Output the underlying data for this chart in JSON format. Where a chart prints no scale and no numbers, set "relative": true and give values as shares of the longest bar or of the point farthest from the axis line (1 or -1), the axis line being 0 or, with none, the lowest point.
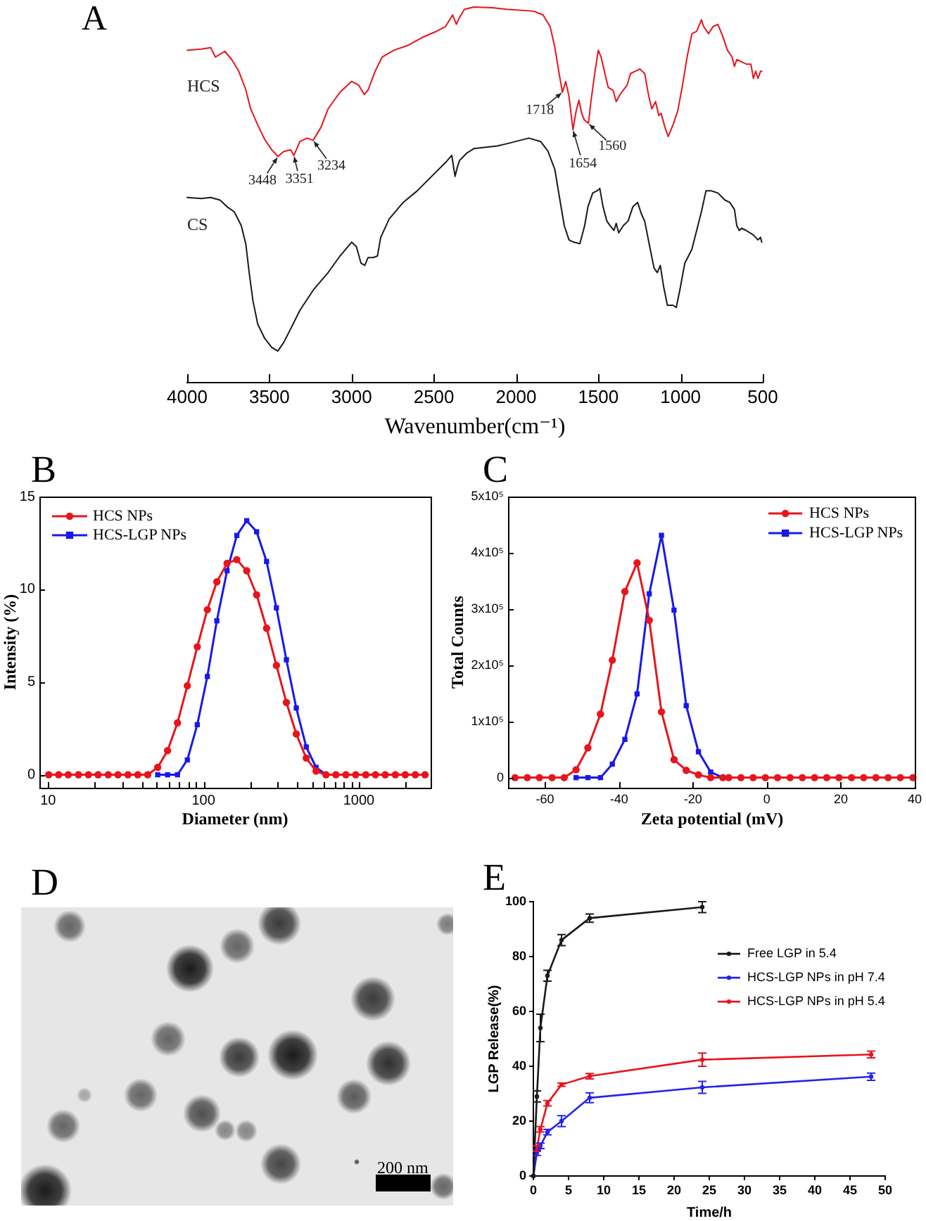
{
  "chart_data": [
    {
      "type": "line",
      "title": "A",
      "xlabel": "Wavenumber(cm⁻¹)",
      "relative": true,
      "xlim": [
        4000,
        500
      ],
      "xticks": [
        4000,
        3500,
        3000,
        2500,
        2000,
        1500,
        1000,
        500
      ],
      "marker": "none",
      "series": [
        {
          "name": "HCS",
          "color": "#e8141c",
          "x": [
            4000,
            3914,
            3857,
            3829,
            3771,
            3729,
            3686,
            3643,
            3614,
            3571,
            3529,
            3486,
            3448,
            3414,
            3371,
            3351,
            3314,
            3271,
            3234,
            3186,
            3143,
            3071,
            3000,
            2957,
            2923,
            2900,
            2857,
            2814,
            2743,
            2657,
            2571,
            2486,
            2429,
            2386,
            2363,
            2343,
            2314,
            2257,
            2143,
            2057,
            1894,
            1836,
            1793,
            1764,
            1736,
            1718,
            1698,
            1678,
            1654,
            1635,
            1618,
            1601,
            1586,
            1560,
            1545,
            1520,
            1500,
            1483,
            1463,
            1440,
            1411,
            1391,
            1368,
            1348,
            1325,
            1304,
            1276,
            1247,
            1218,
            1195,
            1175,
            1152,
            1132,
            1118,
            1095,
            1075,
            1046,
            1017,
            988,
            960,
            931,
            902,
            873,
            859,
            830,
            802,
            773,
            744,
            715,
            687,
            672,
            658,
            629,
            600,
            572,
            557,
            543,
            529,
            514,
            505
          ],
          "values": [
            0.885,
            0.888,
            0.892,
            0.867,
            0.882,
            0.86,
            0.829,
            0.779,
            0.729,
            0.686,
            0.648,
            0.62,
            0.602,
            0.615,
            0.62,
            0.605,
            0.642,
            0.651,
            0.645,
            0.68,
            0.729,
            0.773,
            0.802,
            0.792,
            0.767,
            0.779,
            0.829,
            0.867,
            0.885,
            0.898,
            0.919,
            0.935,
            0.948,
            0.979,
            0.954,
            0.973,
            0.994,
            1.0,
            0.998,
            0.994,
            0.989,
            0.979,
            0.948,
            0.892,
            0.817,
            0.773,
            0.802,
            0.761,
            0.673,
            0.723,
            0.752,
            0.717,
            0.7,
            0.69,
            0.748,
            0.829,
            0.885,
            0.867,
            0.829,
            0.786,
            0.779,
            0.748,
            0.767,
            0.779,
            0.792,
            0.823,
            0.829,
            0.835,
            0.823,
            0.767,
            0.729,
            0.748,
            0.711,
            0.717,
            0.68,
            0.655,
            0.686,
            0.723,
            0.792,
            0.867,
            0.929,
            0.935,
            0.966,
            0.948,
            0.929,
            0.948,
            0.954,
            0.923,
            0.885,
            0.867,
            0.842,
            0.86,
            0.854,
            0.848,
            0.848,
            0.81,
            0.829,
            0.81,
            0.829,
            0.829
          ]
        },
        {
          "name": "CS",
          "color": "#1a1a1a",
          "x": [
            4000,
            3914,
            3857,
            3800,
            3757,
            3714,
            3671,
            3643,
            3623,
            3600,
            3571,
            3529,
            3486,
            3449,
            3414,
            3371,
            3314,
            3229,
            3143,
            3071,
            3000,
            2971,
            2943,
            2920,
            2900,
            2871,
            2843,
            2823,
            2771,
            2686,
            2600,
            2514,
            2429,
            2391,
            2371,
            2357,
            2343,
            2300,
            2257,
            2114,
            2057,
            1922,
            1851,
            1807,
            1764,
            1736,
            1707,
            1678,
            1649,
            1612,
            1583,
            1563,
            1534,
            1506,
            1491,
            1471,
            1448,
            1428,
            1405,
            1391,
            1376,
            1348,
            1319,
            1290,
            1261,
            1238,
            1218,
            1190,
            1161,
            1141,
            1123,
            1103,
            1080,
            1046,
            1026,
            1003,
            974,
            931,
            902,
            873,
            845,
            816,
            773,
            730,
            701,
            672,
            658,
            643,
            629,
            600,
            557,
            529,
            514,
            506
          ],
          "values": [
            0.493,
            0.49,
            0.493,
            0.486,
            0.468,
            0.455,
            0.418,
            0.368,
            0.293,
            0.218,
            0.156,
            0.118,
            0.094,
            0.084,
            0.106,
            0.143,
            0.193,
            0.249,
            0.293,
            0.337,
            0.374,
            0.362,
            0.318,
            0.312,
            0.333,
            0.333,
            0.337,
            0.387,
            0.436,
            0.48,
            0.511,
            0.549,
            0.586,
            0.605,
            0.549,
            0.574,
            0.592,
            0.611,
            0.623,
            0.63,
            0.636,
            0.651,
            0.642,
            0.617,
            0.567,
            0.493,
            0.418,
            0.38,
            0.374,
            0.37,
            0.418,
            0.468,
            0.505,
            0.511,
            0.517,
            0.468,
            0.43,
            0.418,
            0.405,
            0.424,
            0.399,
            0.418,
            0.43,
            0.468,
            0.48,
            0.449,
            0.43,
            0.368,
            0.305,
            0.293,
            0.312,
            0.256,
            0.206,
            0.206,
            0.2,
            0.249,
            0.318,
            0.355,
            0.405,
            0.455,
            0.511,
            0.511,
            0.505,
            0.486,
            0.48,
            0.461,
            0.418,
            0.405,
            0.411,
            0.405,
            0.393,
            0.38,
            0.387,
            0.374
          ]
        }
      ],
      "annotations": [
        {
          "text": "3448",
          "x": 3448,
          "y": 0.602
        },
        {
          "text": "3351",
          "x": 3351,
          "y": 0.605
        },
        {
          "text": "3234",
          "x": 3234,
          "y": 0.645
        },
        {
          "text": "1718",
          "x": 1718,
          "y": 0.773
        },
        {
          "text": "1654",
          "x": 1654,
          "y": 0.673
        },
        {
          "text": "1560",
          "x": 1560,
          "y": 0.69
        }
      ]
    },
    {
      "type": "line",
      "title": "B",
      "xlabel": "Diameter (nm)",
      "ylabel": "Intensity (%)",
      "log": "x",
      "legend": "top left",
      "x": [
        10.1,
        11.7,
        13.5,
        15.7,
        18.2,
        21.0,
        24.4,
        28.2,
        32.7,
        37.8,
        43.8,
        50.8,
        58.8,
        68.1,
        78.8,
        91.3,
        106,
        122,
        142,
        164,
        190,
        220,
        255,
        295,
        342,
        396,
        459,
        531,
        615,
        712,
        825,
        955,
        1110,
        1280,
        1480,
        1720,
        1990,
        2310,
        2670
      ],
      "xlim": [
        8.8,
        2900
      ],
      "xticks": [
        10,
        {
          "value": 20,
          "label": null
        },
        {
          "value": 30,
          "label": null
        },
        {
          "value": 40,
          "label": null
        },
        {
          "value": 50,
          "label": null
        },
        {
          "value": 60,
          "label": null
        },
        {
          "value": 70,
          "label": null
        },
        {
          "value": 80,
          "label": null
        },
        {
          "value": 90,
          "label": null
        },
        100,
        {
          "value": 200,
          "label": null
        },
        {
          "value": 300,
          "label": null
        },
        {
          "value": 400,
          "label": null
        },
        {
          "value": 500,
          "label": null
        },
        {
          "value": 600,
          "label": null
        },
        {
          "value": 700,
          "label": null
        },
        {
          "value": 800,
          "label": null
        },
        {
          "value": 900,
          "label": null
        },
        1000,
        {
          "value": 2000,
          "label": null
        }
      ],
      "ylim": [
        -0.7,
        15
      ],
      "yticks": [
        0,
        5,
        10,
        15
      ],
      "series": [
        {
          "name": "HCS NPs",
          "color": "#e8141c",
          "marker": "circle",
          "values": [
            0,
            0,
            0,
            0,
            0,
            0,
            0,
            0,
            0,
            0,
            0,
            0.4,
            1.3,
            2.8,
            4.8,
            6.9,
            8.9,
            10.4,
            11.4,
            11.6,
            11.0,
            9.7,
            7.9,
            5.9,
            3.9,
            2.2,
            0.9,
            0.2,
            0,
            0,
            0,
            0,
            0,
            0,
            0,
            0,
            0,
            0,
            0
          ]
        },
        {
          "name": "HCS-LGP NPs",
          "color": "#1818ee",
          "marker": "square",
          "values": [
            null,
            null,
            null,
            null,
            null,
            null,
            null,
            null,
            null,
            null,
            null,
            0,
            0,
            0,
            0.8,
            2.7,
            5.3,
            8.3,
            11.0,
            12.9,
            13.7,
            13.1,
            11.5,
            9.0,
            6.2,
            3.6,
            1.5,
            0.4,
            0,
            null,
            null,
            null,
            null,
            null,
            null,
            null,
            null,
            null,
            null
          ]
        }
      ]
    },
    {
      "type": "line",
      "title": "C",
      "xlabel": "Zeta potential (mV)",
      "ylabel": "Total Counts",
      "legend": "top right",
      "xlim": [
        -70,
        40
      ],
      "xticks": [
        -60,
        -40,
        -20,
        0,
        20,
        40
      ],
      "ylim": [
        -18000,
        500000
      ],
      "yticks": [
        0,
        {
          "value": 100000,
          "label": "1x10⁵"
        },
        {
          "value": 200000,
          "label": "2x10⁵"
        },
        {
          "value": 300000,
          "label": "3x10⁵"
        },
        {
          "value": 400000,
          "label": "4x10⁵"
        },
        {
          "value": 500000,
          "label": "5x10⁵"
        }
      ],
      "series": [
        {
          "name": "HCS NPs",
          "color": "#e8141c",
          "marker": "circle",
          "x": [
            -68.1,
            -64.8,
            -61.5,
            -58.1,
            -54.8,
            -51.6,
            -48.4,
            -45,
            -41.8,
            -38.4,
            -35.1,
            -31.8,
            -28.5,
            -25.1,
            -21.8,
            -18.5,
            -15.2,
            -11.9,
            -10.3,
            -7.0,
            -3.7,
            -0.4,
            2.9,
            6.3,
            9.6,
            12.9,
            16.2,
            19.5,
            22.9,
            26.2,
            29.5,
            32.8,
            36.1,
            39.5
          ],
          "values": [
            0,
            0,
            0,
            0,
            0,
            14000,
            53000,
            113000,
            209000,
            331000,
            382000,
            280000,
            117000,
            32000,
            13000,
            5000,
            0,
            0,
            0,
            0,
            0,
            0,
            0,
            0,
            0,
            0,
            0,
            0,
            0,
            0,
            0,
            0,
            0,
            0
          ]
        },
        {
          "name": "HCS-LGP NPs",
          "color": "#1818ee",
          "marker": "square",
          "x": [
            -51.6,
            -48.4,
            -45,
            -41.8,
            -38.4,
            -35.1,
            -31.8,
            -28.5,
            -25.1,
            -21.8,
            -18.5,
            -15.2,
            -11.9
          ],
          "values": [
            0,
            0,
            0,
            24000,
            68000,
            149000,
            327000,
            431000,
            298000,
            128000,
            46000,
            10000,
            0
          ]
        }
      ]
    },
    {
      "type": "other",
      "title": "D",
      "annotations": [
        "200 nm"
      ]
    },
    {
      "type": "line",
      "title": "E",
      "xlabel": "Time/h",
      "ylabel": "LGP Release(%)",
      "legend": "right",
      "marker": "circle",
      "xlim": [
        0,
        50
      ],
      "xticks": [
        0,
        5,
        10,
        15,
        20,
        25,
        30,
        35,
        40,
        45,
        50
      ],
      "ylim": [
        0,
        100
      ],
      "yticks": [
        0,
        20,
        40,
        60,
        80,
        100
      ],
      "series": [
        {
          "name": "Free LGP in 5.4",
          "color": "#1a1a1a",
          "x": [
            0,
            0.5,
            1,
            2,
            4,
            8,
            24
          ],
          "values": [
            0,
            29,
            54,
            73,
            86,
            94,
            98
          ],
          "errors": [
            null,
            2,
            5,
            2,
            2,
            1.5,
            2
          ]
        },
        {
          "name": "HCS-LGP NPs in pH 7.4",
          "color": "#2323f0",
          "x": [
            0,
            0.5,
            1,
            2,
            4,
            8,
            24,
            48
          ],
          "values": [
            0,
            8.5,
            11,
            16,
            20,
            28.5,
            32.3,
            36.2
          ],
          "errors": [
            null,
            1,
            1,
            1,
            2,
            1.8,
            2.2,
            1.3
          ]
        },
        {
          "name": "HCS-LGP NPs in pH 5.4",
          "color": "#e8141c",
          "x": [
            0,
            0.5,
            1,
            2,
            4,
            8,
            24,
            48
          ],
          "values": [
            0,
            10,
            17,
            26.5,
            33.3,
            36.4,
            42.4,
            44.3
          ],
          "errors": [
            null,
            1,
            1,
            1,
            0.6,
            1,
            2.4,
            1.2
          ]
        }
      ]
    }
  ]
}
